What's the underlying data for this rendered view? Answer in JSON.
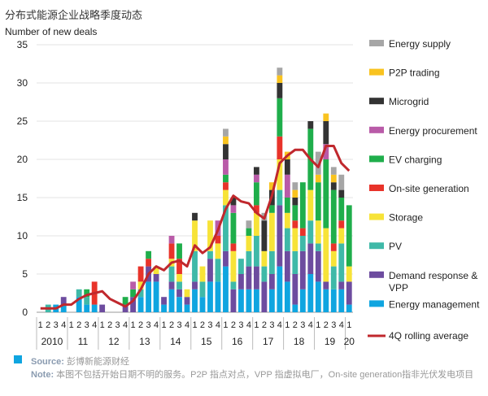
{
  "title": "分布式能源企业战略季度动态",
  "chart_data": {
    "type": "bar",
    "stacked": true,
    "ylabel": "Number of new deals",
    "ylim": [
      0,
      35
    ],
    "yticks": [
      0,
      5,
      10,
      15,
      20,
      25,
      30,
      35
    ],
    "grid": true,
    "legend_position": "right",
    "quarters": [
      "1",
      "2",
      "3",
      "4",
      "1",
      "2",
      "3",
      "4",
      "1",
      "2",
      "3",
      "4",
      "1",
      "2",
      "3",
      "4",
      "1",
      "2",
      "3",
      "4",
      "1",
      "2",
      "3",
      "4",
      "1",
      "2",
      "3",
      "4",
      "1",
      "2",
      "3",
      "4",
      "1",
      "2",
      "3",
      "4",
      "1",
      "2",
      "3",
      "4",
      "1"
    ],
    "years": [
      "2010",
      "11",
      "12",
      "13",
      "14",
      "15",
      "16",
      "17",
      "18",
      "19",
      "20"
    ],
    "series": [
      {
        "name": "Energy management",
        "color": "#0fa5e0",
        "values": [
          0,
          0,
          1,
          1,
          0,
          2,
          1,
          1,
          0,
          0,
          0,
          0,
          0,
          2,
          4,
          4,
          1,
          3,
          2,
          1,
          3,
          2,
          4,
          4,
          6,
          0,
          3,
          3,
          3,
          0,
          3,
          6,
          4,
          1,
          3,
          5,
          4,
          3,
          3,
          3,
          1
        ]
      },
      {
        "name": "Demand response & VPP",
        "color": "#6d4c9f",
        "values": [
          0,
          0,
          0,
          1,
          0,
          0,
          0,
          0,
          1,
          0,
          0,
          1,
          2,
          0,
          2,
          1,
          1,
          1,
          1,
          1,
          1,
          0,
          3,
          0,
          2,
          3,
          2,
          3,
          3,
          4,
          2,
          8,
          4,
          4,
          5,
          4,
          4,
          1,
          0,
          1,
          3
        ]
      },
      {
        "name": "PV",
        "color": "#3fb9a8",
        "values": [
          0,
          1,
          0,
          0,
          0,
          1,
          1,
          0,
          0,
          0,
          0,
          0,
          0,
          1,
          0,
          0,
          0,
          2,
          1,
          0,
          4,
          2,
          1,
          3,
          6,
          1,
          2,
          2,
          4,
          2,
          3,
          2,
          3,
          3,
          2,
          3,
          1,
          0,
          3,
          5,
          0
        ]
      },
      {
        "name": "Storage",
        "color": "#f7e338",
        "values": [
          0,
          0,
          0,
          0,
          0,
          0,
          0,
          0,
          0,
          0,
          0,
          0,
          0,
          1,
          0,
          1,
          0,
          1,
          1,
          1,
          4,
          2,
          4,
          2,
          2,
          4,
          0,
          2,
          3,
          2,
          5,
          4,
          2,
          3,
          0,
          4,
          3,
          7,
          2,
          2,
          2
        ]
      },
      {
        "name": "On-site generation",
        "color": "#e8332a",
        "values": [
          0,
          0,
          0,
          0,
          0,
          0,
          0,
          3,
          0,
          0,
          0,
          0,
          0,
          2,
          1,
          0,
          0,
          2,
          2,
          0,
          0,
          0,
          0,
          1,
          1,
          1,
          0,
          0,
          1,
          0,
          0,
          3,
          0,
          1,
          1,
          0,
          0,
          0,
          1,
          1,
          0
        ]
      },
      {
        "name": "EV charging",
        "color": "#1fae4b",
        "values": [
          0,
          0,
          0,
          0,
          0,
          0,
          1,
          0,
          0,
          0,
          0,
          1,
          1,
          0,
          1,
          0,
          0,
          0,
          2,
          0,
          0,
          0,
          0,
          0,
          1,
          4,
          0,
          1,
          3,
          0,
          1,
          5,
          2,
          2,
          6,
          8,
          5,
          9,
          7,
          3,
          8
        ]
      },
      {
        "name": "Energy procurement",
        "color": "#b95ba8",
        "values": [
          0,
          0,
          0,
          0,
          0,
          0,
          0,
          0,
          0,
          0,
          0,
          0,
          1,
          0,
          0,
          0,
          0,
          1,
          0,
          0,
          0,
          0,
          0,
          2,
          2,
          1,
          0,
          0,
          1,
          0,
          0,
          0,
          3,
          0,
          0,
          0,
          0,
          2,
          0,
          0,
          0
        ]
      },
      {
        "name": "Microgrid",
        "color": "#333333",
        "values": [
          0,
          0,
          0,
          0,
          0,
          0,
          0,
          0,
          0,
          0,
          0,
          0,
          0,
          0,
          0,
          0,
          0,
          0,
          0,
          0,
          1,
          0,
          0,
          0,
          2,
          1,
          0,
          0,
          1,
          4,
          2,
          2,
          2,
          1,
          0,
          1,
          0,
          3,
          1,
          1,
          0
        ]
      },
      {
        "name": "P2P trading",
        "color": "#f9c31f",
        "values": [
          0,
          0,
          0,
          0,
          0,
          0,
          0,
          0,
          0,
          0,
          0,
          0,
          0,
          0,
          0,
          0,
          0,
          0,
          0,
          0,
          0,
          0,
          0,
          0,
          1,
          0,
          0,
          0,
          0,
          0,
          1,
          1,
          1,
          1,
          0,
          0,
          1,
          1,
          1,
          0,
          0
        ]
      },
      {
        "name": "Energy supply",
        "color": "#a6a6a6",
        "values": [
          0,
          0,
          0,
          0,
          0,
          0,
          0,
          0,
          0,
          0,
          0,
          0,
          0,
          0,
          0,
          0,
          0,
          0,
          0,
          0,
          0,
          0,
          0,
          0,
          1,
          0,
          0,
          1,
          0,
          1,
          0,
          1,
          0,
          1,
          0,
          0,
          3,
          0,
          1,
          2,
          0
        ]
      }
    ],
    "line": {
      "name": "4Q rolling average",
      "color": "#c0282d",
      "values": [
        0.5,
        0.5,
        0.5,
        1.0,
        1.0,
        1.75,
        2.25,
        2.5,
        2.75,
        1.75,
        1.25,
        0.75,
        1.5,
        3.0,
        5.0,
        6.0,
        5.5,
        6.5,
        6.75,
        6.0,
        8.75,
        7.75,
        8.5,
        10.75,
        13.5,
        15.25,
        14.5,
        14.25,
        13.0,
        12.25,
        15.25,
        19.5,
        20.5,
        21.25,
        21.25,
        20.0,
        19.0,
        21.75,
        21.75,
        19.5,
        18.5
      ]
    }
  },
  "footer": {
    "source_label": "Source:",
    "source_text": "彭博新能源财经",
    "note_label": "Note:",
    "note_text": "本图不包括开始日期不明的服务。P2P 指点对点，VPP 指虚拟电厂，On-site generation指非光伏发电项目"
  }
}
